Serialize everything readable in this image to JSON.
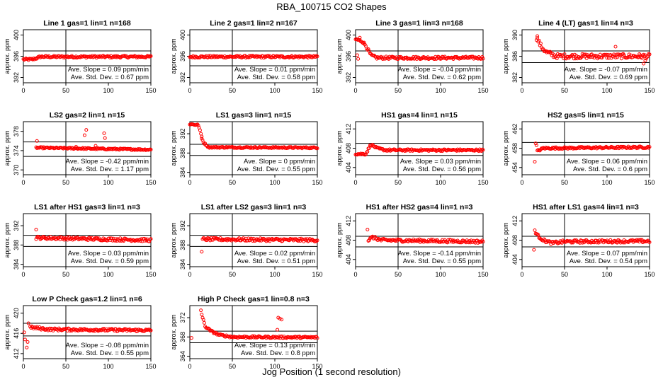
{
  "title": "RBA_100715  CO2 Shapes",
  "xlabel": "Jog Position (1 second resolution)",
  "ylabel": "approx. ppm",
  "colors": {
    "points": "#ff0000",
    "axes": "#000000"
  },
  "chart_data": [
    {
      "type": "scatter",
      "title": "Line 1 gas=1 lin=1 n=168",
      "xlim": [
        0,
        150
      ],
      "ylim": [
        391,
        401
      ],
      "yticks": [
        392,
        396,
        400
      ],
      "xticks": [
        0,
        50,
        100,
        150
      ],
      "hlines": [
        397,
        394.2
      ],
      "vline": 50,
      "annotations": [
        "Ave. Slope = 0.09 ppm/min",
        "Ave. Std. Dev. = 0.67 ppm"
      ],
      "profile": [
        [
          0,
          395.4
        ],
        [
          10,
          395.4
        ],
        [
          15,
          395.6
        ],
        [
          20,
          395.9
        ],
        [
          150,
          395.9
        ]
      ],
      "noise": 0.2,
      "extra": []
    },
    {
      "type": "scatter",
      "title": "Line 2 gas=1 lin=2 n=167",
      "xlim": [
        0,
        150
      ],
      "ylim": [
        391,
        401
      ],
      "yticks": [
        392,
        396,
        400
      ],
      "xticks": [
        0,
        50,
        100,
        150
      ],
      "hlines": [
        397,
        394.2
      ],
      "vline": 50,
      "annotations": [
        "Ave. Slope = 0.01 ppm/min",
        "Ave. Std. Dev. = 0.58 ppm"
      ],
      "profile": [
        [
          0,
          395.9
        ],
        [
          150,
          395.9
        ]
      ],
      "noise": 0.2,
      "extra": []
    },
    {
      "type": "scatter",
      "title": "Line 3 gas=1 lin=3 n=168",
      "xlim": [
        0,
        150
      ],
      "ylim": [
        391,
        401
      ],
      "yticks": [
        392,
        396,
        400
      ],
      "xticks": [
        0,
        50,
        100,
        150
      ],
      "hlines": [
        397,
        394.2
      ],
      "vline": 50,
      "annotations": [
        "Ave. Slope = -0.04 ppm/min",
        "Ave. Std. Dev. = 0.62 ppm"
      ],
      "profile": [
        [
          0,
          399.2
        ],
        [
          8,
          398.8
        ],
        [
          12,
          398
        ],
        [
          18,
          396.2
        ],
        [
          25,
          395.7
        ],
        [
          150,
          395.7
        ]
      ],
      "noise": 0.25,
      "extra": [
        [
          2,
          396.2
        ],
        [
          3,
          395.5
        ],
        [
          5,
          399.5
        ],
        [
          9,
          398.5
        ]
      ]
    },
    {
      "type": "scatter",
      "title": "Line 4 (LT) gas=1 lin=4 n=3",
      "xlim": [
        0,
        150
      ],
      "ylim": [
        381,
        391
      ],
      "yticks": [
        382,
        386,
        390
      ],
      "xticks": [
        0,
        50,
        100,
        150
      ],
      "hlines": [
        387,
        384.8
      ],
      "vline": 50,
      "annotations": [
        "Ave. Slope = -0.07 ppm/min",
        "Ave. Std. Dev. = 0.69 ppm"
      ],
      "profile": [
        [
          17,
          389.5
        ],
        [
          22,
          388
        ],
        [
          28,
          386.8
        ],
        [
          40,
          386
        ],
        [
          150,
          386
        ]
      ],
      "noise": 0.45,
      "extra": [
        [
          110,
          387.8
        ],
        [
          143,
          384.6
        ],
        [
          145,
          385.2
        ],
        [
          18,
          389.8
        ]
      ]
    },
    {
      "type": "scatter",
      "title": "LS2 gas=2 lin=1 n=15",
      "xlim": [
        0,
        150
      ],
      "ylim": [
        369,
        380
      ],
      "yticks": [
        370,
        374,
        378
      ],
      "xticks": [
        0,
        50,
        100,
        150
      ],
      "hlines": [
        375.8,
        372.8
      ],
      "vline": 50,
      "annotations": [
        "Ave. Slope = -0.42 ppm/min",
        "Ave. Std. Dev. = 1.17 ppm"
      ],
      "profile": [
        [
          15,
          374.6
        ],
        [
          150,
          374.2
        ]
      ],
      "noise": 0.15,
      "extra": [
        [
          16,
          376
        ],
        [
          72,
          377.2
        ],
        [
          74,
          378.3
        ],
        [
          95,
          377.6
        ],
        [
          96,
          376.6
        ],
        [
          85,
          375
        ],
        [
          62,
          374.8
        ]
      ]
    },
    {
      "type": "scatter",
      "title": "LS1 gas=3 lin=1 n=15",
      "xlim": [
        0,
        150
      ],
      "ylim": [
        383.5,
        394.5
      ],
      "yticks": [
        384,
        388,
        392
      ],
      "xticks": [
        0,
        50,
        100,
        150
      ],
      "hlines": [
        389.8,
        387.5
      ],
      "vline": 50,
      "annotations": [
        "Ave. Slope = 0 ppm/min",
        "Ave. Std. Dev. = 0.55 ppm"
      ],
      "profile": [
        [
          0,
          394
        ],
        [
          10,
          393.8
        ],
        [
          13,
          392
        ],
        [
          16,
          390.2
        ],
        [
          22,
          389.2
        ],
        [
          150,
          389.1
        ]
      ],
      "noise": 0.15,
      "extra": [
        [
          14,
          391
        ]
      ]
    },
    {
      "type": "scatter",
      "title": "HS1 gas=4 lin=1 n=15",
      "xlim": [
        0,
        150
      ],
      "ylim": [
        402.5,
        413.5
      ],
      "yticks": [
        404,
        408,
        412
      ],
      "xticks": [
        0,
        50,
        100,
        150
      ],
      "hlines": [
        409,
        406.5
      ],
      "vline": 50,
      "annotations": [
        "Ave. Slope = 0.03 ppm/min",
        "Ave. Std. Dev. = 0.56 ppm"
      ],
      "profile": [
        [
          0,
          406.8
        ],
        [
          12,
          406.8
        ],
        [
          18,
          408.8
        ],
        [
          25,
          408
        ],
        [
          35,
          407.6
        ],
        [
          150,
          407.6
        ]
      ],
      "noise": 0.2,
      "extra": []
    },
    {
      "type": "scatter",
      "title": "HS2 gas=5 lin=1 n=15",
      "xlim": [
        0,
        150
      ],
      "ylim": [
        452.5,
        463.5
      ],
      "yticks": [
        454,
        458,
        462
      ],
      "xticks": [
        0,
        50,
        100,
        150
      ],
      "hlines": [
        459.2,
        456.6
      ],
      "vline": 50,
      "annotations": [
        "Ave. Slope = 0.06 ppm/min",
        "Ave. Std. Dev. = 0.6 ppm"
      ],
      "profile": [
        [
          18,
          457.4
        ],
        [
          25,
          458
        ],
        [
          150,
          458.2
        ]
      ],
      "noise": 0.2,
      "extra": [
        [
          15,
          455.2
        ],
        [
          16,
          459
        ],
        [
          17,
          458.6
        ]
      ]
    },
    {
      "type": "scatter",
      "title": "LS1 after HS1 gas=3 lin=1 n=3",
      "xlim": [
        0,
        150
      ],
      "ylim": [
        383.5,
        394.5
      ],
      "yticks": [
        384,
        388,
        392
      ],
      "xticks": [
        0,
        50,
        100,
        150
      ],
      "hlines": [
        390,
        387.7
      ],
      "vline": 50,
      "annotations": [
        "Ave. Slope = 0.03 ppm/min",
        "Ave. Std. Dev. = 0.59 ppm"
      ],
      "profile": [
        [
          15,
          389.5
        ],
        [
          150,
          389
        ]
      ],
      "noise": 0.3,
      "extra": [
        [
          15,
          391.2
        ]
      ]
    },
    {
      "type": "scatter",
      "title": "LS1 after LS2 gas=3 lin=1 n=3",
      "xlim": [
        0,
        150
      ],
      "ylim": [
        383.5,
        394.5
      ],
      "yticks": [
        384,
        388,
        392
      ],
      "xticks": [
        0,
        50,
        100,
        150
      ],
      "hlines": [
        390,
        387.7
      ],
      "vline": 50,
      "annotations": [
        "Ave. Slope = 0.02 ppm/min",
        "Ave. Std. Dev. = 0.51 ppm"
      ],
      "profile": [
        [
          15,
          389.2
        ],
        [
          150,
          389
        ]
      ],
      "noise": 0.3,
      "extra": [
        [
          14,
          386.6
        ]
      ]
    },
    {
      "type": "scatter",
      "title": "HS1 after HS2 gas=4 lin=1 n=3",
      "xlim": [
        0,
        150
      ],
      "ylim": [
        402.5,
        413.5
      ],
      "yticks": [
        404,
        408,
        412
      ],
      "xticks": [
        0,
        50,
        100,
        150
      ],
      "hlines": [
        408.8,
        406.6
      ],
      "vline": 50,
      "annotations": [
        "Ave. Slope = -0.14 ppm/min",
        "Ave. Std. Dev. = 0.55 ppm"
      ],
      "profile": [
        [
          15,
          408
        ],
        [
          20,
          408.6
        ],
        [
          30,
          408
        ],
        [
          150,
          407.7
        ]
      ],
      "noise": 0.3,
      "extra": [
        [
          14,
          410.2
        ]
      ]
    },
    {
      "type": "scatter",
      "title": "HS1 after LS1 gas=4 lin=1 n=3",
      "xlim": [
        0,
        150
      ],
      "ylim": [
        402.5,
        413.5
      ],
      "yticks": [
        404,
        408,
        412
      ],
      "xticks": [
        0,
        50,
        100,
        150
      ],
      "hlines": [
        408.8,
        406.6
      ],
      "vline": 50,
      "annotations": [
        "Ave. Slope = 0.07 ppm/min",
        "Ave. Std. Dev. = 0.54 ppm"
      ],
      "profile": [
        [
          15,
          410
        ],
        [
          18,
          409
        ],
        [
          25,
          408
        ],
        [
          35,
          407.4
        ],
        [
          50,
          407.7
        ],
        [
          150,
          407.8
        ]
      ],
      "noise": 0.3,
      "extra": [
        [
          14,
          406
        ]
      ]
    },
    {
      "type": "scatter",
      "title": "Low P Check gas=1.2 lin=1 n=6",
      "xlim": [
        0,
        150
      ],
      "ylim": [
        411,
        421.5
      ],
      "yticks": [
        412,
        416,
        420
      ],
      "xticks": [
        0,
        50,
        100,
        150
      ],
      "hlines": [
        418,
        415.5
      ],
      "vline": 50,
      "annotations": [
        "Ave. Slope = -0.08 ppm/min",
        "Ave. Std. Dev. = 0.55 ppm"
      ],
      "profile": [
        [
          8,
          417.2
        ],
        [
          30,
          416.8
        ],
        [
          150,
          416.6
        ]
      ],
      "noise": 0.25,
      "extra": [
        [
          1,
          416.2
        ],
        [
          2,
          414.8
        ],
        [
          4,
          413.2
        ],
        [
          5,
          414.3
        ],
        [
          6,
          418
        ]
      ]
    },
    {
      "type": "scatter",
      "title": "High P Check gas=1 lin=0.8 n=3",
      "xlim": [
        0,
        150
      ],
      "ylim": [
        363.5,
        374.5
      ],
      "yticks": [
        364,
        368,
        372
      ],
      "xticks": [
        0,
        50,
        100,
        150
      ],
      "hlines": [
        369.2,
        366.8
      ],
      "vline": 50,
      "annotations": [
        "Ave. Slope = 0.13 ppm/min",
        "Ave. Std. Dev. = 0.8 ppm"
      ],
      "profile": [
        [
          13,
          373.5
        ],
        [
          15,
          372
        ],
        [
          18,
          370.2
        ],
        [
          25,
          369.2
        ],
        [
          35,
          368.4
        ],
        [
          50,
          368
        ],
        [
          150,
          367.9
        ]
      ],
      "noise": 0.2,
      "extra": [
        [
          2,
          367.8
        ],
        [
          104,
          372
        ],
        [
          106,
          371.8
        ],
        [
          108,
          371.6
        ],
        [
          103,
          369.5
        ]
      ]
    }
  ]
}
